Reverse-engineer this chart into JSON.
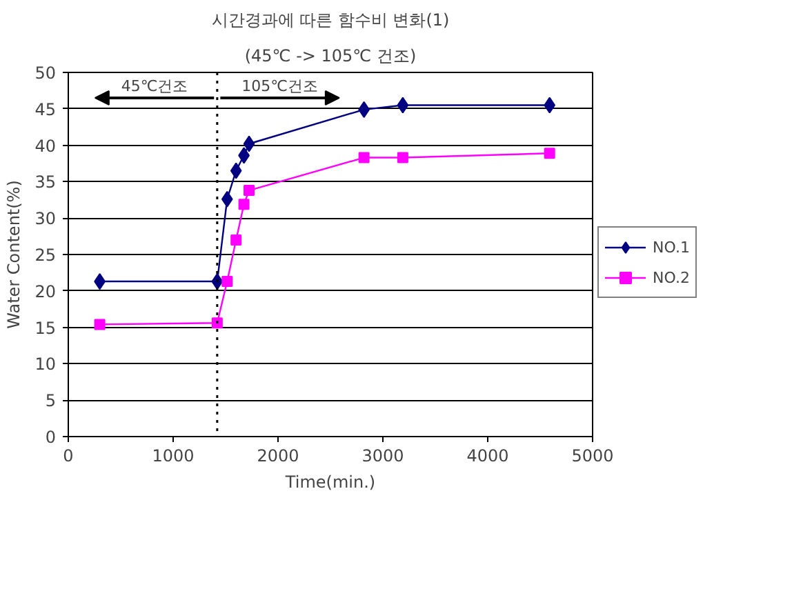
{
  "chart_data": {
    "type": "line",
    "title": "시간경과에 따른 함수비 변화(1)",
    "subtitle": "(45℃ -> 105℃ 건조)",
    "xlabel": "Time(min.)",
    "ylabel": "Water Content(%)",
    "x": [
      300,
      1420,
      1515,
      1600,
      1675,
      1724,
      2820,
      3190,
      4590
    ],
    "series": [
      {
        "name": "NO.1",
        "color": "#000080",
        "marker": "diamond",
        "values": [
          21.3,
          21.3,
          32.6,
          36.5,
          38.6,
          40.2,
          44.9,
          45.5,
          45.5
        ]
      },
      {
        "name": "NO.2",
        "color": "#ff00ff",
        "marker": "square",
        "values": [
          15.4,
          15.6,
          21.3,
          27.0,
          31.9,
          33.8,
          38.3,
          38.3,
          38.9
        ]
      }
    ],
    "xlim": [
      0,
      5000
    ],
    "xticks": [
      0,
      1000,
      2000,
      3000,
      4000,
      5000
    ],
    "ylim": [
      0,
      50
    ],
    "yticks": [
      0,
      5,
      10,
      15,
      20,
      25,
      30,
      35,
      40,
      45,
      50
    ],
    "grid": "y",
    "legend": "right",
    "line_style": "solid",
    "ref_lines": [
      {
        "axis": "x",
        "value": 1420,
        "label": null,
        "line_style": "dotted",
        "color": "#000000"
      }
    ],
    "annotations": [
      "45℃건조",
      "105℃건조"
    ]
  }
}
